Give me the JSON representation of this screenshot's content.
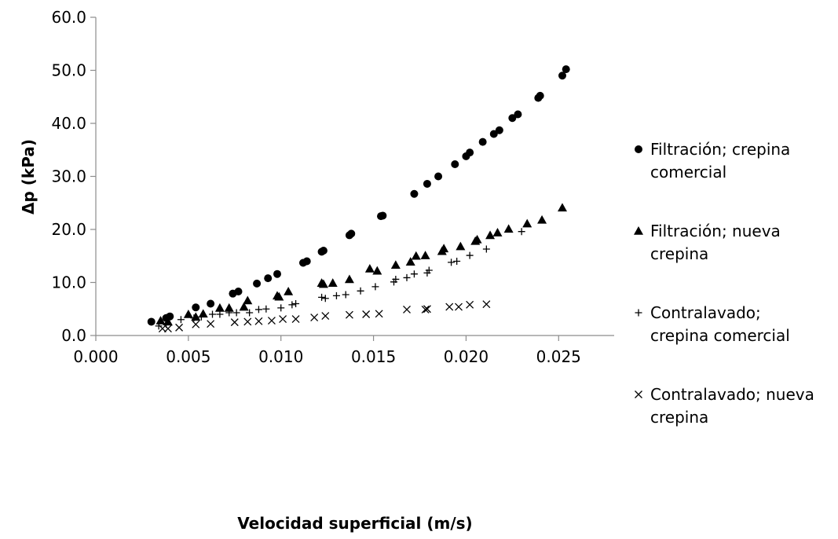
{
  "chart_data": {
    "type": "scatter",
    "title": "",
    "xlabel": "Velocidad superficial (m/s)",
    "ylabel": "Δp (kPa)",
    "xlim": [
      0.0,
      0.028
    ],
    "ylim": [
      0.0,
      60.0
    ],
    "x_ticks": [
      0.0,
      0.005,
      0.01,
      0.015,
      0.02,
      0.025
    ],
    "x_tick_labels": [
      "0.000",
      "0.005",
      "0.010",
      "0.015",
      "0.020",
      "0.025"
    ],
    "y_ticks": [
      0,
      10,
      20,
      30,
      40,
      50,
      60
    ],
    "y_tick_labels": [
      "0.0",
      "10.0",
      "20.0",
      "30.0",
      "40.0",
      "50.0",
      "60.0"
    ],
    "grid": false,
    "legend_position": "right",
    "series": [
      {
        "name": "Filtración; crepina comercial",
        "legend_lines": [
          "Filtración; crepina",
          "comercial"
        ],
        "marker": "circle",
        "color": "#000000",
        "x": [
          0.003,
          0.0038,
          0.004,
          0.0054,
          0.0062,
          0.0074,
          0.0077,
          0.0087,
          0.0093,
          0.0098,
          0.0112,
          0.0114,
          0.0122,
          0.0123,
          0.0137,
          0.0138,
          0.0154,
          0.0155,
          0.0172,
          0.0179,
          0.0185,
          0.0194,
          0.02,
          0.0202,
          0.0209,
          0.0215,
          0.0218,
          0.0225,
          0.0228,
          0.0239,
          0.024,
          0.0252,
          0.0254
        ],
        "y": [
          2.6,
          3.3,
          3.6,
          5.3,
          6.0,
          7.9,
          8.3,
          9.8,
          10.8,
          11.6,
          13.7,
          14.0,
          15.8,
          16.0,
          18.9,
          19.2,
          22.5,
          22.6,
          26.7,
          28.6,
          30.0,
          32.3,
          33.8,
          34.5,
          36.5,
          38.0,
          38.7,
          41.0,
          41.7,
          44.8,
          45.2,
          49.0,
          50.2
        ]
      },
      {
        "name": "Filtración; nueva crepina",
        "legend_lines": [
          "Filtración; nueva",
          "crepina"
        ],
        "marker": "triangle",
        "color": "#000000",
        "x": [
          0.0035,
          0.0039,
          0.005,
          0.0054,
          0.0058,
          0.0067,
          0.0072,
          0.008,
          0.0082,
          0.0098,
          0.0099,
          0.0104,
          0.0122,
          0.0123,
          0.0128,
          0.0137,
          0.0148,
          0.0152,
          0.0162,
          0.017,
          0.0173,
          0.0178,
          0.0187,
          0.0188,
          0.0197,
          0.0205,
          0.0206,
          0.0213,
          0.0217,
          0.0223,
          0.0233,
          0.0241,
          0.0252
        ],
        "y": [
          2.8,
          2.6,
          4.0,
          3.5,
          4.1,
          5.2,
          5.2,
          5.4,
          6.6,
          7.5,
          7.3,
          8.3,
          9.9,
          9.7,
          9.9,
          10.6,
          12.6,
          12.2,
          13.3,
          13.9,
          15.0,
          15.1,
          15.9,
          16.4,
          16.8,
          17.8,
          18.1,
          18.9,
          19.4,
          20.1,
          21.1,
          21.8,
          24.1
        ]
      },
      {
        "name": "Contralavado; crepina comercial",
        "legend_lines": [
          "Contralavado;",
          "crepina comercial"
        ],
        "marker": "plus",
        "color": "#000000",
        "x": [
          0.0034,
          0.0038,
          0.0046,
          0.0053,
          0.0057,
          0.0063,
          0.0067,
          0.0072,
          0.0076,
          0.0083,
          0.0088,
          0.0092,
          0.01,
          0.0106,
          0.0108,
          0.0122,
          0.0124,
          0.013,
          0.0135,
          0.0143,
          0.0151,
          0.0161,
          0.0162,
          0.0168,
          0.0172,
          0.0179,
          0.018,
          0.0192,
          0.0195,
          0.0202,
          0.0211,
          0.023
        ],
        "y": [
          1.8,
          2.1,
          3.0,
          3.3,
          3.5,
          4.0,
          4.0,
          4.3,
          4.3,
          4.3,
          4.9,
          5.0,
          5.2,
          5.8,
          6.0,
          7.2,
          7.0,
          7.5,
          7.7,
          8.4,
          9.2,
          10.1,
          10.6,
          10.9,
          11.6,
          11.8,
          12.3,
          13.8,
          14.0,
          15.1,
          16.3,
          19.6
        ]
      },
      {
        "name": "Contralavado; nueva crepina",
        "legend_lines": [
          "Contralavado; nueva",
          "crepina"
        ],
        "marker": "x",
        "color": "#000000",
        "x": [
          0.0036,
          0.0039,
          0.0045,
          0.0054,
          0.0062,
          0.0075,
          0.0082,
          0.0088,
          0.0095,
          0.0101,
          0.0108,
          0.0118,
          0.0124,
          0.0137,
          0.0146,
          0.0153,
          0.0168,
          0.0178,
          0.0179,
          0.0191,
          0.0196,
          0.0202,
          0.0211
        ],
        "y": [
          1.3,
          1.3,
          1.5,
          2.1,
          2.2,
          2.5,
          2.6,
          2.7,
          2.8,
          3.1,
          3.1,
          3.4,
          3.7,
          3.9,
          4.0,
          4.1,
          4.9,
          4.9,
          5.0,
          5.4,
          5.4,
          5.8,
          5.9
        ]
      }
    ]
  }
}
